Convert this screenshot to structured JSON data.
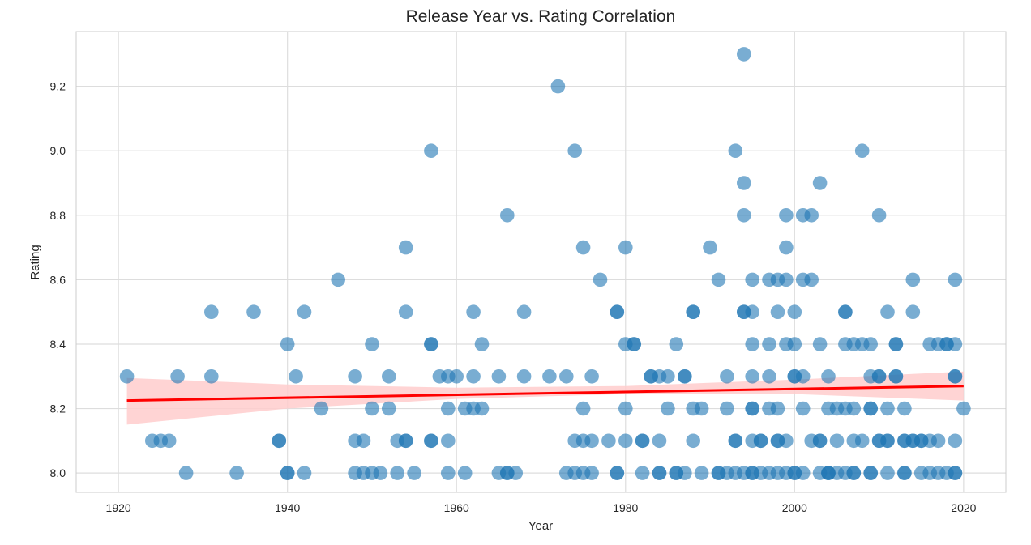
{
  "chart_data": {
    "type": "scatter",
    "title": "Release Year vs. Rating Correlation",
    "xlabel": "Year",
    "ylabel": "Rating",
    "xlim": [
      1915,
      2025
    ],
    "ylim": [
      7.94,
      9.37
    ],
    "xticks": [
      1920,
      1940,
      1960,
      1980,
      2000,
      2020
    ],
    "yticks": [
      8.0,
      8.2,
      8.4,
      8.6,
      8.8,
      9.0,
      9.2
    ],
    "xtick_labels": [
      "1920",
      "1940",
      "1960",
      "1980",
      "2000",
      "2020"
    ],
    "ytick_labels": [
      "8.0",
      "8.2",
      "8.4",
      "8.6",
      "8.8",
      "9.0",
      "9.2"
    ],
    "grid": true,
    "regression_line": {
      "x": [
        1921,
        2020
      ],
      "y": [
        8.225,
        8.27
      ],
      "color": "#ff0000"
    },
    "confidence_band": {
      "x": [
        1921,
        1940,
        1960,
        1980,
        2000,
        2020
      ],
      "lower": [
        8.15,
        8.2,
        8.23,
        8.245,
        8.245,
        8.225
      ],
      "upper": [
        8.295,
        8.275,
        8.265,
        8.27,
        8.29,
        8.315
      ],
      "color": "#ffcccc"
    },
    "point_color": "#1f77b4",
    "points": [
      [
        1921,
        8.3
      ],
      [
        1924,
        8.1
      ],
      [
        1925,
        8.1
      ],
      [
        1926,
        8.1
      ],
      [
        1927,
        8.3
      ],
      [
        1928,
        8.0
      ],
      [
        1931,
        8.5
      ],
      [
        1931,
        8.3
      ],
      [
        1934,
        8.0
      ],
      [
        1936,
        8.5
      ],
      [
        1939,
        8.1
      ],
      [
        1939,
        8.1
      ],
      [
        1940,
        8.4
      ],
      [
        1940,
        8.0
      ],
      [
        1940,
        8.0
      ],
      [
        1941,
        8.3
      ],
      [
        1942,
        8.5
      ],
      [
        1942,
        8.0
      ],
      [
        1944,
        8.2
      ],
      [
        1946,
        8.6
      ],
      [
        1948,
        8.3
      ],
      [
        1948,
        8.1
      ],
      [
        1948,
        8.0
      ],
      [
        1949,
        8.1
      ],
      [
        1949,
        8.0
      ],
      [
        1950,
        8.4
      ],
      [
        1950,
        8.2
      ],
      [
        1950,
        8.0
      ],
      [
        1951,
        8.0
      ],
      [
        1952,
        8.3
      ],
      [
        1952,
        8.2
      ],
      [
        1953,
        8.1
      ],
      [
        1953,
        8.0
      ],
      [
        1954,
        8.7
      ],
      [
        1954,
        8.5
      ],
      [
        1954,
        8.1
      ],
      [
        1954,
        8.1
      ],
      [
        1955,
        8.0
      ],
      [
        1957,
        9.0
      ],
      [
        1957,
        8.4
      ],
      [
        1957,
        8.4
      ],
      [
        1957,
        8.1
      ],
      [
        1957,
        8.1
      ],
      [
        1958,
        8.3
      ],
      [
        1959,
        8.3
      ],
      [
        1959,
        8.2
      ],
      [
        1959,
        8.1
      ],
      [
        1959,
        8.0
      ],
      [
        1960,
        8.3
      ],
      [
        1961,
        8.2
      ],
      [
        1961,
        8.0
      ],
      [
        1962,
        8.5
      ],
      [
        1962,
        8.3
      ],
      [
        1962,
        8.2
      ],
      [
        1963,
        8.4
      ],
      [
        1963,
        8.2
      ],
      [
        1965,
        8.3
      ],
      [
        1965,
        8.0
      ],
      [
        1966,
        8.8
      ],
      [
        1966,
        8.0
      ],
      [
        1966,
        8.0
      ],
      [
        1967,
        8.0
      ],
      [
        1968,
        8.5
      ],
      [
        1968,
        8.3
      ],
      [
        1971,
        8.3
      ],
      [
        1972,
        9.2
      ],
      [
        1973,
        8.3
      ],
      [
        1973,
        8.0
      ],
      [
        1974,
        9.0
      ],
      [
        1974,
        8.1
      ],
      [
        1974,
        8.0
      ],
      [
        1975,
        8.7
      ],
      [
        1975,
        8.2
      ],
      [
        1975,
        8.1
      ],
      [
        1975,
        8.0
      ],
      [
        1976,
        8.3
      ],
      [
        1976,
        8.1
      ],
      [
        1976,
        8.0
      ],
      [
        1977,
        8.6
      ],
      [
        1978,
        8.1
      ],
      [
        1979,
        8.5
      ],
      [
        1979,
        8.5
      ],
      [
        1979,
        8.0
      ],
      [
        1979,
        8.0
      ],
      [
        1980,
        8.7
      ],
      [
        1980,
        8.4
      ],
      [
        1980,
        8.2
      ],
      [
        1980,
        8.1
      ],
      [
        1981,
        8.4
      ],
      [
        1981,
        8.4
      ],
      [
        1982,
        8.1
      ],
      [
        1982,
        8.1
      ],
      [
        1982,
        8.0
      ],
      [
        1983,
        8.3
      ],
      [
        1983,
        8.3
      ],
      [
        1984,
        8.3
      ],
      [
        1984,
        8.1
      ],
      [
        1984,
        8.0
      ],
      [
        1984,
        8.0
      ],
      [
        1985,
        8.3
      ],
      [
        1985,
        8.2
      ],
      [
        1986,
        8.4
      ],
      [
        1986,
        8.0
      ],
      [
        1986,
        8.0
      ],
      [
        1987,
        8.3
      ],
      [
        1987,
        8.3
      ],
      [
        1987,
        8.0
      ],
      [
        1988,
        8.5
      ],
      [
        1988,
        8.5
      ],
      [
        1988,
        8.2
      ],
      [
        1988,
        8.1
      ],
      [
        1989,
        8.2
      ],
      [
        1989,
        8.0
      ],
      [
        1990,
        8.7
      ],
      [
        1991,
        8.6
      ],
      [
        1991,
        8.0
      ],
      [
        1991,
        8.0
      ],
      [
        1992,
        8.3
      ],
      [
        1992,
        8.2
      ],
      [
        1992,
        8.0
      ],
      [
        1993,
        9.0
      ],
      [
        1993,
        8.1
      ],
      [
        1993,
        8.1
      ],
      [
        1993,
        8.0
      ],
      [
        1994,
        9.3
      ],
      [
        1994,
        8.9
      ],
      [
        1994,
        8.8
      ],
      [
        1994,
        8.5
      ],
      [
        1994,
        8.5
      ],
      [
        1994,
        8.0
      ],
      [
        1995,
        8.6
      ],
      [
        1995,
        8.5
      ],
      [
        1995,
        8.4
      ],
      [
        1995,
        8.3
      ],
      [
        1995,
        8.2
      ],
      [
        1995,
        8.2
      ],
      [
        1995,
        8.1
      ],
      [
        1995,
        8.0
      ],
      [
        1995,
        8.0
      ],
      [
        1996,
        8.1
      ],
      [
        1996,
        8.1
      ],
      [
        1996,
        8.0
      ],
      [
        1997,
        8.6
      ],
      [
        1997,
        8.4
      ],
      [
        1997,
        8.3
      ],
      [
        1997,
        8.2
      ],
      [
        1997,
        8.0
      ],
      [
        1998,
        8.6
      ],
      [
        1998,
        8.5
      ],
      [
        1998,
        8.2
      ],
      [
        1998,
        8.1
      ],
      [
        1998,
        8.1
      ],
      [
        1998,
        8.0
      ],
      [
        1999,
        8.8
      ],
      [
        1999,
        8.7
      ],
      [
        1999,
        8.6
      ],
      [
        1999,
        8.4
      ],
      [
        1999,
        8.1
      ],
      [
        1999,
        8.0
      ],
      [
        2000,
        8.5
      ],
      [
        2000,
        8.4
      ],
      [
        2000,
        8.3
      ],
      [
        2000,
        8.3
      ],
      [
        2000,
        8.0
      ],
      [
        2000,
        8.0
      ],
      [
        2001,
        8.8
      ],
      [
        2001,
        8.6
      ],
      [
        2001,
        8.3
      ],
      [
        2001,
        8.2
      ],
      [
        2001,
        8.0
      ],
      [
        2002,
        8.8
      ],
      [
        2002,
        8.6
      ],
      [
        2002,
        8.1
      ],
      [
        2003,
        8.9
      ],
      [
        2003,
        8.4
      ],
      [
        2003,
        8.1
      ],
      [
        2003,
        8.1
      ],
      [
        2003,
        8.0
      ],
      [
        2004,
        8.3
      ],
      [
        2004,
        8.2
      ],
      [
        2004,
        8.0
      ],
      [
        2004,
        8.0
      ],
      [
        2004,
        8.0
      ],
      [
        2005,
        8.2
      ],
      [
        2005,
        8.1
      ],
      [
        2005,
        8.0
      ],
      [
        2006,
        8.5
      ],
      [
        2006,
        8.5
      ],
      [
        2006,
        8.4
      ],
      [
        2006,
        8.2
      ],
      [
        2006,
        8.0
      ],
      [
        2007,
        8.4
      ],
      [
        2007,
        8.2
      ],
      [
        2007,
        8.1
      ],
      [
        2007,
        8.0
      ],
      [
        2007,
        8.0
      ],
      [
        2008,
        9.0
      ],
      [
        2008,
        8.4
      ],
      [
        2008,
        8.1
      ],
      [
        2009,
        8.4
      ],
      [
        2009,
        8.3
      ],
      [
        2009,
        8.2
      ],
      [
        2009,
        8.2
      ],
      [
        2009,
        8.0
      ],
      [
        2009,
        8.0
      ],
      [
        2010,
        8.8
      ],
      [
        2010,
        8.3
      ],
      [
        2010,
        8.3
      ],
      [
        2010,
        8.1
      ],
      [
        2010,
        8.1
      ],
      [
        2011,
        8.5
      ],
      [
        2011,
        8.2
      ],
      [
        2011,
        8.1
      ],
      [
        2011,
        8.1
      ],
      [
        2011,
        8.0
      ],
      [
        2012,
        8.4
      ],
      [
        2012,
        8.4
      ],
      [
        2012,
        8.3
      ],
      [
        2012,
        8.3
      ],
      [
        2013,
        8.2
      ],
      [
        2013,
        8.1
      ],
      [
        2013,
        8.1
      ],
      [
        2013,
        8.0
      ],
      [
        2013,
        8.0
      ],
      [
        2014,
        8.6
      ],
      [
        2014,
        8.5
      ],
      [
        2014,
        8.1
      ],
      [
        2014,
        8.1
      ],
      [
        2015,
        8.1
      ],
      [
        2015,
        8.1
      ],
      [
        2015,
        8.0
      ],
      [
        2016,
        8.4
      ],
      [
        2016,
        8.1
      ],
      [
        2016,
        8.0
      ],
      [
        2017,
        8.4
      ],
      [
        2017,
        8.1
      ],
      [
        2017,
        8.0
      ],
      [
        2018,
        8.4
      ],
      [
        2018,
        8.4
      ],
      [
        2018,
        8.0
      ],
      [
        2019,
        8.6
      ],
      [
        2019,
        8.4
      ],
      [
        2019,
        8.3
      ],
      [
        2019,
        8.3
      ],
      [
        2019,
        8.1
      ],
      [
        2019,
        8.0
      ],
      [
        2019,
        8.0
      ],
      [
        2020,
        8.2
      ]
    ]
  }
}
